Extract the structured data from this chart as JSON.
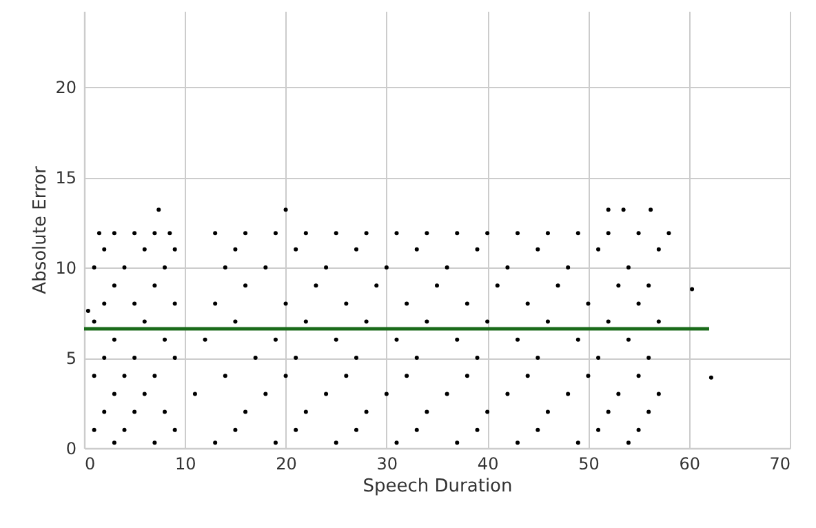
{
  "chart_data": {
    "type": "scatter",
    "xlabel": "Speech Duration",
    "ylabel": "Absolute Error",
    "xlim": [
      0,
      70
    ],
    "ylim": [
      0,
      24.2
    ],
    "xticks": [
      0,
      10,
      20,
      30,
      40,
      50,
      60,
      70
    ],
    "yticks": [
      0,
      5,
      10,
      15,
      20
    ],
    "grid": true,
    "series": [
      {
        "type": "scatter",
        "marker": "circle",
        "color": "#000000",
        "x": [
          1.5,
          3,
          5,
          7,
          8.5,
          13,
          16,
          19,
          22,
          25,
          28,
          31,
          34,
          37,
          40,
          43,
          46,
          49,
          52,
          55,
          58,
          2,
          6,
          9,
          15,
          21,
          27,
          33,
          39,
          45,
          51,
          57,
          1,
          4,
          8,
          14,
          18,
          24,
          30,
          36,
          42,
          48,
          54,
          3,
          7,
          16,
          23,
          29,
          35,
          41,
          47,
          53,
          56,
          2,
          5,
          9,
          13,
          20,
          26,
          32,
          38,
          44,
          50,
          55,
          1,
          6,
          15,
          22,
          28,
          34,
          40,
          46,
          52,
          57,
          3,
          8,
          12,
          19,
          25,
          31,
          37,
          43,
          49,
          54,
          2,
          5,
          9,
          17,
          21,
          27,
          33,
          39,
          45,
          51,
          56,
          1,
          4,
          7,
          14,
          20,
          26,
          32,
          38,
          44,
          50,
          55,
          3,
          6,
          11,
          18,
          24,
          30,
          36,
          42,
          48,
          53,
          57,
          2,
          5,
          8,
          16,
          22,
          28,
          34,
          40,
          46,
          52,
          56,
          1,
          4,
          9,
          15,
          21,
          27,
          33,
          39,
          45,
          51,
          55,
          3,
          7,
          13,
          19,
          25,
          31,
          37,
          43,
          49,
          54,
          7.4,
          20,
          52,
          53.5,
          56.2,
          62.2,
          60.3,
          0.4
        ],
        "values": [
          11.9,
          11.9,
          11.9,
          11.9,
          11.9,
          11.9,
          11.9,
          11.9,
          11.9,
          11.9,
          11.9,
          11.9,
          11.9,
          11.9,
          11.9,
          11.9,
          11.9,
          11.9,
          11.9,
          11.9,
          11.9,
          11,
          11,
          11,
          11,
          11,
          11,
          11,
          11,
          11,
          11,
          11,
          10,
          10,
          10,
          10,
          10,
          10,
          10,
          10,
          10,
          10,
          10,
          9,
          9,
          9,
          9,
          9,
          9,
          9,
          9,
          9,
          9,
          8,
          8,
          8,
          8,
          8,
          8,
          8,
          8,
          8,
          8,
          8,
          7,
          7,
          7,
          7,
          7,
          7,
          7,
          7,
          7,
          7,
          6,
          6,
          6,
          6,
          6,
          6,
          6,
          6,
          6,
          6,
          5,
          5,
          5,
          5,
          5,
          5,
          5,
          5,
          5,
          5,
          5,
          4,
          4,
          4,
          4,
          4,
          4,
          4,
          4,
          4,
          4,
          4,
          3,
          3,
          3,
          3,
          3,
          3,
          3,
          3,
          3,
          3,
          3,
          2,
          2,
          2,
          2,
          2,
          2,
          2,
          2,
          2,
          2,
          2,
          1,
          1,
          1,
          1,
          1,
          1,
          1,
          1,
          1,
          1,
          1,
          0.3,
          0.3,
          0.3,
          0.3,
          0.3,
          0.3,
          0.3,
          0.3,
          0.3,
          0.3,
          13.2,
          13.2,
          13.2,
          13.2,
          13.2,
          3.9,
          8.8,
          7.6
        ]
      },
      {
        "type": "line",
        "color": "#1a6b1a",
        "x": [
          0,
          62
        ],
        "values": [
          6.6,
          6.6
        ]
      }
    ]
  }
}
